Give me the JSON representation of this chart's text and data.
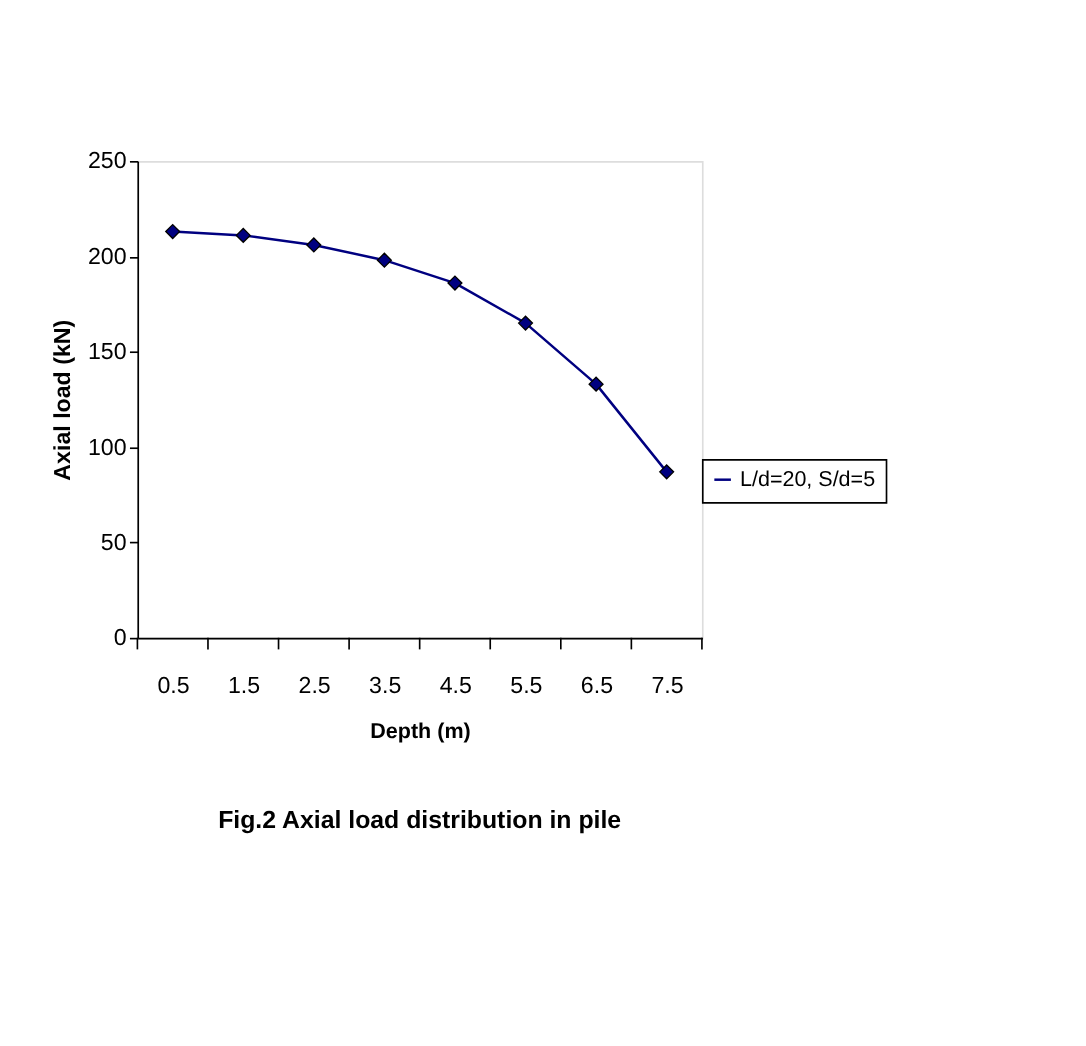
{
  "chart_data": {
    "type": "line",
    "title": "Fig.2 Axial load distribution in pile",
    "xlabel": "Depth (m)",
    "ylabel": "Axial load (kN)",
    "categories": [
      "0.5",
      "1.5",
      "2.5",
      "3.5",
      "4.5",
      "5.5",
      "6.5",
      "7.5"
    ],
    "series": [
      {
        "name": "L/d=20, S/d=5",
        "color": "#000080",
        "values": [
          213,
          211,
          206,
          198,
          186,
          165,
          133,
          87
        ]
      }
    ],
    "ylim": [
      0,
      250
    ],
    "yticks": [
      0,
      50,
      100,
      150,
      200,
      250
    ],
    "grid": false,
    "legend": "right",
    "marker": "diamond",
    "line_style": "solid"
  }
}
